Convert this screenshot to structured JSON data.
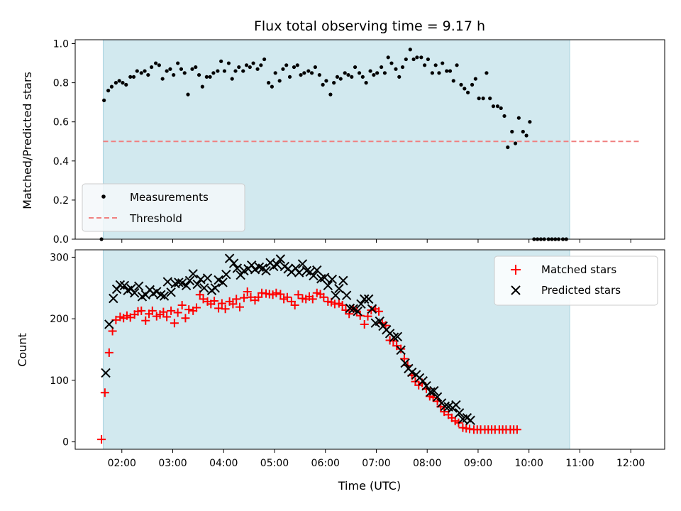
{
  "colors": {
    "shade": "#d2e9ef",
    "shade_edge": "#a9d3df",
    "measurement": "#000000",
    "threshold": "#f08080",
    "matched": "#ff0000",
    "predicted": "#000000",
    "legend_bg": "#f4f8fa"
  },
  "chart_data": [
    {
      "type": "scatter",
      "title": "Flux total observing time = 9.17 h",
      "ylabel": "Matched/Predicted stars",
      "xlabel": "",
      "xlim": [
        "01:05",
        "12:40"
      ],
      "ylim": [
        0,
        1.02
      ],
      "y_ticks": [
        0.0,
        0.2,
        0.4,
        0.6,
        0.8,
        1.0
      ],
      "y_tick_labels": [
        "0.0",
        "0.2",
        "0.4",
        "0.6",
        "0.8",
        "1.0"
      ],
      "shaded_interval": [
        "01:38",
        "10:48"
      ],
      "legend": {
        "position": "lower-left",
        "entries": [
          {
            "label": "Measurements",
            "marker": "dot"
          },
          {
            "label": "Threshold",
            "marker": "dashed-line"
          }
        ]
      },
      "threshold": {
        "name": "Threshold",
        "y": 0.5,
        "x_range": [
          "01:38",
          "12:12"
        ]
      },
      "series": [
        {
          "name": "Measurements",
          "marker": "dot",
          "points": [
            {
              "x": "01:36",
              "y": 0.0
            },
            {
              "x": "01:39",
              "y": 0.71
            },
            {
              "x": "01:44",
              "y": 0.76
            },
            {
              "x": "01:48",
              "y": 0.78
            },
            {
              "x": "01:53",
              "y": 0.8
            },
            {
              "x": "01:57",
              "y": 0.81
            },
            {
              "x": "02:01",
              "y": 0.8
            },
            {
              "x": "02:05",
              "y": 0.79
            },
            {
              "x": "02:10",
              "y": 0.83
            },
            {
              "x": "02:14",
              "y": 0.83
            },
            {
              "x": "02:18",
              "y": 0.86
            },
            {
              "x": "02:23",
              "y": 0.85
            },
            {
              "x": "02:27",
              "y": 0.86
            },
            {
              "x": "02:31",
              "y": 0.84
            },
            {
              "x": "02:35",
              "y": 0.88
            },
            {
              "x": "02:40",
              "y": 0.9
            },
            {
              "x": "02:44",
              "y": 0.89
            },
            {
              "x": "02:48",
              "y": 0.82
            },
            {
              "x": "02:53",
              "y": 0.86
            },
            {
              "x": "02:57",
              "y": 0.87
            },
            {
              "x": "03:01",
              "y": 0.84
            },
            {
              "x": "03:06",
              "y": 0.9
            },
            {
              "x": "03:10",
              "y": 0.87
            },
            {
              "x": "03:14",
              "y": 0.85
            },
            {
              "x": "03:18",
              "y": 0.74
            },
            {
              "x": "03:23",
              "y": 0.87
            },
            {
              "x": "03:27",
              "y": 0.88
            },
            {
              "x": "03:31",
              "y": 0.84
            },
            {
              "x": "03:35",
              "y": 0.78
            },
            {
              "x": "03:40",
              "y": 0.83
            },
            {
              "x": "03:44",
              "y": 0.83
            },
            {
              "x": "03:48",
              "y": 0.85
            },
            {
              "x": "03:53",
              "y": 0.86
            },
            {
              "x": "03:57",
              "y": 0.91
            },
            {
              "x": "04:01",
              "y": 0.86
            },
            {
              "x": "04:06",
              "y": 0.9
            },
            {
              "x": "04:10",
              "y": 0.82
            },
            {
              "x": "04:14",
              "y": 0.86
            },
            {
              "x": "04:18",
              "y": 0.88
            },
            {
              "x": "04:23",
              "y": 0.86
            },
            {
              "x": "04:27",
              "y": 0.89
            },
            {
              "x": "04:31",
              "y": 0.88
            },
            {
              "x": "04:35",
              "y": 0.9
            },
            {
              "x": "04:40",
              "y": 0.87
            },
            {
              "x": "04:44",
              "y": 0.89
            },
            {
              "x": "04:48",
              "y": 0.92
            },
            {
              "x": "04:53",
              "y": 0.8
            },
            {
              "x": "04:57",
              "y": 0.78
            },
            {
              "x": "05:01",
              "y": 0.85
            },
            {
              "x": "05:06",
              "y": 0.81
            },
            {
              "x": "05:10",
              "y": 0.87
            },
            {
              "x": "05:14",
              "y": 0.89
            },
            {
              "x": "05:18",
              "y": 0.83
            },
            {
              "x": "05:23",
              "y": 0.88
            },
            {
              "x": "05:27",
              "y": 0.89
            },
            {
              "x": "05:31",
              "y": 0.84
            },
            {
              "x": "05:35",
              "y": 0.85
            },
            {
              "x": "05:40",
              "y": 0.86
            },
            {
              "x": "05:44",
              "y": 0.85
            },
            {
              "x": "05:48",
              "y": 0.88
            },
            {
              "x": "05:53",
              "y": 0.84
            },
            {
              "x": "05:57",
              "y": 0.79
            },
            {
              "x": "06:01",
              "y": 0.81
            },
            {
              "x": "06:06",
              "y": 0.74
            },
            {
              "x": "06:10",
              "y": 0.8
            },
            {
              "x": "06:14",
              "y": 0.83
            },
            {
              "x": "06:18",
              "y": 0.82
            },
            {
              "x": "06:23",
              "y": 0.85
            },
            {
              "x": "06:27",
              "y": 0.84
            },
            {
              "x": "06:31",
              "y": 0.83
            },
            {
              "x": "06:35",
              "y": 0.88
            },
            {
              "x": "06:40",
              "y": 0.85
            },
            {
              "x": "06:44",
              "y": 0.83
            },
            {
              "x": "06:48",
              "y": 0.8
            },
            {
              "x": "06:53",
              "y": 0.86
            },
            {
              "x": "06:57",
              "y": 0.84
            },
            {
              "x": "07:01",
              "y": 0.85
            },
            {
              "x": "07:06",
              "y": 0.88
            },
            {
              "x": "07:10",
              "y": 0.85
            },
            {
              "x": "07:14",
              "y": 0.93
            },
            {
              "x": "07:18",
              "y": 0.9
            },
            {
              "x": "07:23",
              "y": 0.87
            },
            {
              "x": "07:27",
              "y": 0.83
            },
            {
              "x": "07:31",
              "y": 0.88
            },
            {
              "x": "07:35",
              "y": 0.92
            },
            {
              "x": "07:40",
              "y": 0.97
            },
            {
              "x": "07:44",
              "y": 0.92
            },
            {
              "x": "07:48",
              "y": 0.93
            },
            {
              "x": "07:53",
              "y": 0.93
            },
            {
              "x": "07:57",
              "y": 0.89
            },
            {
              "x": "08:01",
              "y": 0.92
            },
            {
              "x": "08:06",
              "y": 0.85
            },
            {
              "x": "08:10",
              "y": 0.89
            },
            {
              "x": "08:14",
              "y": 0.85
            },
            {
              "x": "08:18",
              "y": 0.9
            },
            {
              "x": "08:23",
              "y": 0.86
            },
            {
              "x": "08:27",
              "y": 0.86
            },
            {
              "x": "08:31",
              "y": 0.81
            },
            {
              "x": "08:35",
              "y": 0.89
            },
            {
              "x": "08:40",
              "y": 0.79
            },
            {
              "x": "08:44",
              "y": 0.77
            },
            {
              "x": "08:48",
              "y": 0.75
            },
            {
              "x": "08:53",
              "y": 0.79
            },
            {
              "x": "08:57",
              "y": 0.82
            },
            {
              "x": "09:01",
              "y": 0.72
            },
            {
              "x": "09:06",
              "y": 0.72
            },
            {
              "x": "09:10",
              "y": 0.85
            },
            {
              "x": "09:14",
              "y": 0.72
            },
            {
              "x": "09:18",
              "y": 0.68
            },
            {
              "x": "09:23",
              "y": 0.68
            },
            {
              "x": "09:27",
              "y": 0.67
            },
            {
              "x": "09:31",
              "y": 0.63
            },
            {
              "x": "09:35",
              "y": 0.47
            },
            {
              "x": "09:40",
              "y": 0.55
            },
            {
              "x": "09:44",
              "y": 0.49
            },
            {
              "x": "09:48",
              "y": 0.62
            },
            {
              "x": "09:53",
              "y": 0.55
            },
            {
              "x": "09:57",
              "y": 0.53
            },
            {
              "x": "10:01",
              "y": 0.6
            },
            {
              "x": "10:06",
              "y": 0.0
            },
            {
              "x": "10:10",
              "y": 0.0
            },
            {
              "x": "10:14",
              "y": 0.0
            },
            {
              "x": "10:18",
              "y": 0.0
            },
            {
              "x": "10:23",
              "y": 0.0
            },
            {
              "x": "10:27",
              "y": 0.0
            },
            {
              "x": "10:31",
              "y": 0.0
            },
            {
              "x": "10:35",
              "y": 0.0
            },
            {
              "x": "10:40",
              "y": 0.0
            },
            {
              "x": "10:44",
              "y": 0.0
            }
          ]
        }
      ]
    },
    {
      "type": "scatter",
      "title": "",
      "ylabel": "Count",
      "xlabel": "Time (UTC)",
      "xlim": [
        "01:05",
        "12:40"
      ],
      "ylim": [
        -12,
        312
      ],
      "y_ticks": [
        0,
        100,
        200,
        300
      ],
      "y_tick_labels": [
        "0",
        "100",
        "200",
        "300"
      ],
      "x_ticks": [
        "02:00",
        "03:00",
        "04:00",
        "05:00",
        "06:00",
        "07:00",
        "08:00",
        "09:00",
        "10:00",
        "11:00",
        "12:00"
      ],
      "shaded_interval": [
        "01:38",
        "10:48"
      ],
      "legend": {
        "position": "upper-right",
        "entries": [
          {
            "label": "Matched stars",
            "marker": "plus"
          },
          {
            "label": "Predicted stars",
            "marker": "x"
          }
        ]
      },
      "series": [
        {
          "name": "Matched stars",
          "marker": "plus",
          "values": [
            4,
            80,
            145,
            180,
            198,
            203,
            201,
            205,
            202,
            207,
            212,
            213,
            197,
            208,
            213,
            204,
            207,
            211,
            203,
            213,
            193,
            210,
            222,
            201,
            215,
            213,
            218,
            239,
            232,
            228,
            224,
            229,
            217,
            225,
            216,
            228,
            224,
            232,
            219,
            234,
            244,
            235,
            230,
            235,
            242,
            241,
            240,
            239,
            242,
            240,
            232,
            235,
            228,
            222,
            239,
            233,
            232,
            236,
            232,
            242,
            240,
            235,
            228,
            227,
            224,
            225,
            222,
            214,
            208,
            216,
            212,
            205,
            191,
            204,
            214,
            216,
            212,
            193,
            189,
            165,
            164,
            156,
            151,
            135,
            124,
            108,
            98,
            92,
            96,
            86,
            74,
            72,
            66,
            57,
            49,
            44,
            39,
            34,
            31,
            23,
            22,
            21,
            20,
            20,
            20,
            20,
            20,
            20,
            20,
            20,
            20,
            20,
            20,
            20,
            20
          ]
        },
        {
          "name": "Predicted stars",
          "marker": "x",
          "values": [
            112,
            191,
            233,
            248,
            255,
            254,
            246,
            249,
            242,
            253,
            236,
            239,
            247,
            241,
            244,
            239,
            237,
            260,
            243,
            257,
            259,
            258,
            254,
            262,
            273,
            256,
            264,
            250,
            266,
            246,
            250,
            263,
            259,
            272,
            298,
            290,
            282,
            271,
            278,
            281,
            287,
            280,
            284,
            282,
            278,
            291,
            285,
            288,
            297,
            285,
            281,
            276,
            282,
            275,
            289,
            278,
            276,
            270,
            279,
            265,
            267,
            254,
            264,
            238,
            249,
            262,
            238,
            217,
            216,
            212,
            224,
            232,
            232,
            216,
            193,
            196,
            188,
            182,
            176,
            170,
            171,
            149,
            128,
            119,
            113,
            109,
            104,
            99,
            91,
            81,
            83,
            73,
            63,
            58,
            57,
            55,
            60,
            47,
            37,
            39,
            35
          ]
        }
      ]
    }
  ]
}
